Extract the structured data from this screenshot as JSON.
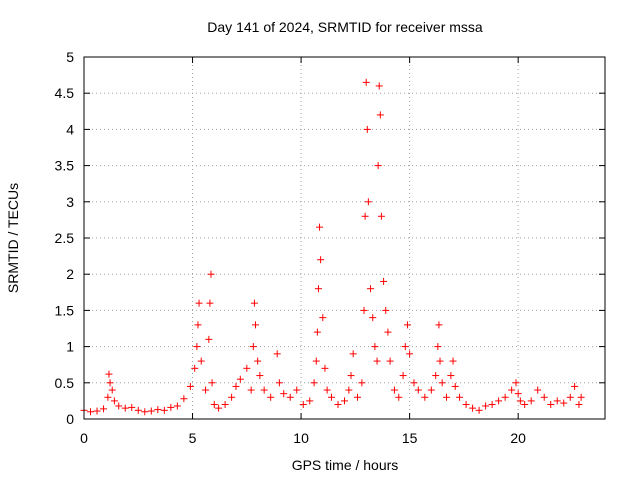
{
  "chart_data": {
    "type": "scatter",
    "title": "Day 141 of 2024, SRMTID for receiver mssa",
    "xlabel": "GPS time / hours",
    "ylabel": "SRMTID / TECUs",
    "xlim": [
      0,
      24
    ],
    "ylim": [
      0,
      5
    ],
    "xticks": [
      0,
      5,
      10,
      15,
      20
    ],
    "xtick_labels": [
      "0",
      "5",
      "10",
      "15",
      "20"
    ],
    "yticks": [
      0,
      0.5,
      1,
      1.5,
      2,
      2.5,
      3,
      3.5,
      4,
      4.5,
      5
    ],
    "ytick_labels": [
      "0",
      "0.5",
      "1",
      "1.5",
      "2",
      "2.5",
      "3",
      "3.5",
      "4",
      "4.5",
      "5"
    ],
    "grid": true,
    "marker": "+",
    "color": "#ff0000",
    "series": [
      {
        "name": "mssa",
        "x": [
          0.0,
          0.3,
          0.6,
          0.9,
          1.1,
          1.15,
          1.2,
          1.3,
          1.4,
          1.6,
          1.9,
          2.2,
          2.5,
          2.8,
          3.1,
          3.4,
          3.7,
          4.0,
          4.3,
          4.6,
          4.9,
          5.1,
          5.2,
          5.25,
          5.3,
          5.4,
          5.6,
          5.75,
          5.8,
          5.85,
          5.9,
          6.0,
          6.2,
          6.5,
          6.8,
          7.0,
          7.2,
          7.5,
          7.7,
          7.8,
          7.85,
          7.9,
          8.0,
          8.1,
          8.3,
          8.6,
          8.9,
          9.0,
          9.2,
          9.5,
          9.8,
          10.1,
          10.4,
          10.6,
          10.7,
          10.75,
          10.8,
          10.85,
          10.9,
          11.0,
          11.1,
          11.2,
          11.4,
          11.7,
          12.0,
          12.2,
          12.3,
          12.4,
          12.6,
          12.8,
          12.9,
          12.95,
          13.0,
          13.05,
          13.1,
          13.2,
          13.3,
          13.4,
          13.5,
          13.55,
          13.6,
          13.65,
          13.7,
          13.8,
          13.9,
          14.0,
          14.1,
          14.3,
          14.5,
          14.7,
          14.8,
          14.9,
          15.0,
          15.2,
          15.4,
          15.7,
          16.0,
          16.2,
          16.3,
          16.35,
          16.4,
          16.5,
          16.7,
          16.9,
          17.0,
          17.1,
          17.3,
          17.6,
          17.9,
          18.2,
          18.5,
          18.8,
          19.1,
          19.4,
          19.7,
          19.9,
          20.0,
          20.1,
          20.3,
          20.6,
          20.9,
          21.2,
          21.5,
          21.8,
          22.1,
          22.4,
          22.6,
          22.8,
          22.9
        ],
        "y": [
          0.12,
          0.1,
          0.11,
          0.14,
          0.3,
          0.62,
          0.5,
          0.4,
          0.25,
          0.18,
          0.15,
          0.16,
          0.12,
          0.1,
          0.11,
          0.13,
          0.12,
          0.16,
          0.18,
          0.28,
          0.45,
          0.7,
          1.0,
          1.3,
          1.6,
          0.8,
          0.4,
          1.1,
          1.6,
          2.0,
          0.5,
          0.2,
          0.15,
          0.2,
          0.3,
          0.45,
          0.55,
          0.7,
          0.4,
          1.0,
          1.6,
          1.3,
          0.8,
          0.6,
          0.4,
          0.3,
          0.9,
          0.5,
          0.35,
          0.3,
          0.4,
          0.2,
          0.25,
          0.5,
          0.8,
          1.2,
          1.8,
          2.65,
          2.2,
          1.4,
          0.7,
          0.4,
          0.3,
          0.2,
          0.25,
          0.4,
          0.6,
          0.9,
          0.3,
          0.5,
          1.5,
          2.8,
          4.65,
          4.0,
          3.0,
          1.8,
          1.4,
          1.0,
          0.8,
          3.5,
          4.6,
          4.2,
          2.8,
          1.9,
          1.5,
          1.2,
          0.8,
          0.4,
          0.3,
          0.6,
          1.0,
          1.3,
          0.9,
          0.5,
          0.4,
          0.3,
          0.4,
          0.6,
          1.0,
          1.3,
          0.8,
          0.5,
          0.3,
          0.6,
          0.8,
          0.45,
          0.3,
          0.2,
          0.15,
          0.12,
          0.18,
          0.2,
          0.25,
          0.3,
          0.4,
          0.5,
          0.35,
          0.25,
          0.2,
          0.25,
          0.4,
          0.3,
          0.2,
          0.25,
          0.22,
          0.3,
          0.45,
          0.2,
          0.3
        ]
      }
    ]
  }
}
